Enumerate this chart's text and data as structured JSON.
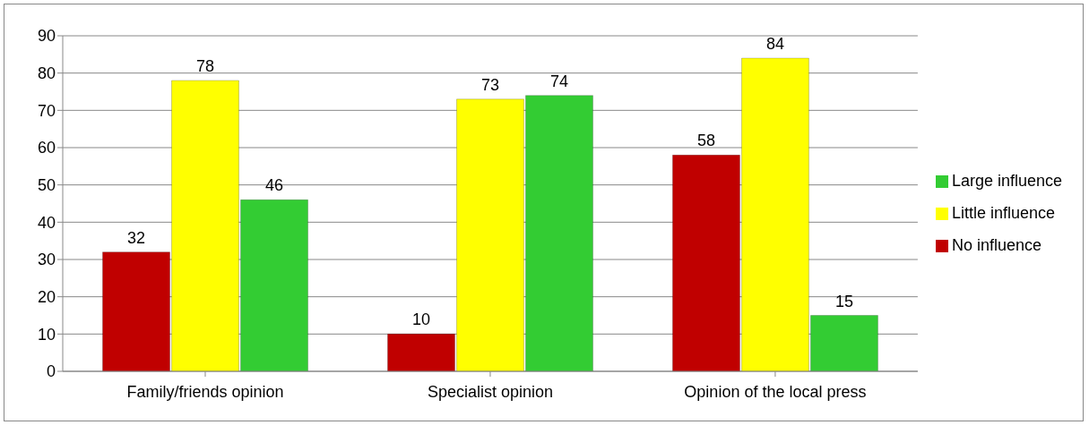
{
  "chart_data": {
    "type": "bar",
    "categories": [
      "Family/friends opinion",
      "Specialist opinion",
      "Opinion of the local press"
    ],
    "series": [
      {
        "name": "No influence",
        "color": "#c00000",
        "values": [
          32,
          10,
          58
        ]
      },
      {
        "name": "Little influence",
        "color": "#ffff00",
        "values": [
          78,
          73,
          84
        ]
      },
      {
        "name": "Large influence",
        "color": "#33cc33",
        "values": [
          46,
          74,
          15
        ]
      }
    ],
    "ylim": [
      0,
      90
    ],
    "yticks": [
      0,
      10,
      20,
      30,
      40,
      50,
      60,
      70,
      80,
      90
    ],
    "grid": "y",
    "legend": "right",
    "data_labels": true
  }
}
